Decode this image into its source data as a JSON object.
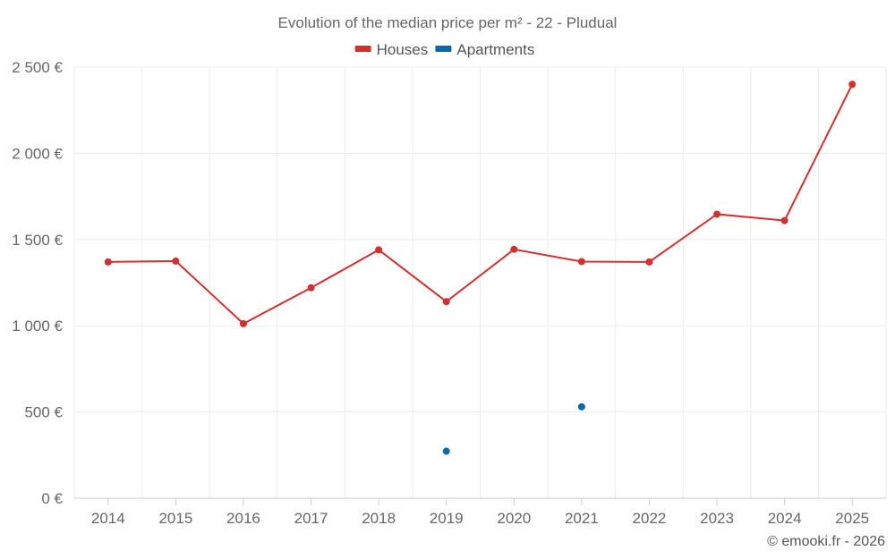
{
  "chart_data": {
    "type": "line",
    "title": "Evolution of the median price per m² - 22 - Pludual",
    "categories": [
      "2014",
      "2015",
      "2016",
      "2017",
      "2018",
      "2019",
      "2020",
      "2021",
      "2022",
      "2023",
      "2024",
      "2025"
    ],
    "series": [
      {
        "name": "Houses",
        "color": "#d32f2f",
        "values": [
          1370,
          1375,
          1012,
          1220,
          1440,
          1140,
          1443,
          1372,
          1370,
          1647,
          1610,
          2400
        ]
      },
      {
        "name": "Apartments",
        "color": "#0a69a8",
        "values": [
          null,
          null,
          null,
          null,
          null,
          272,
          null,
          530,
          null,
          null,
          null,
          null
        ]
      }
    ],
    "ylim": [
      0,
      2500
    ],
    "yticks": [
      0,
      500,
      1000,
      1500,
      2000,
      2500
    ],
    "ytick_labels": [
      "0 €",
      "500 €",
      "1 000 €",
      "1 500 €",
      "2 000 €",
      "2 500 €"
    ],
    "grid": true,
    "legend_position": "top-center"
  },
  "credit": "© emooki.fr - 2026"
}
